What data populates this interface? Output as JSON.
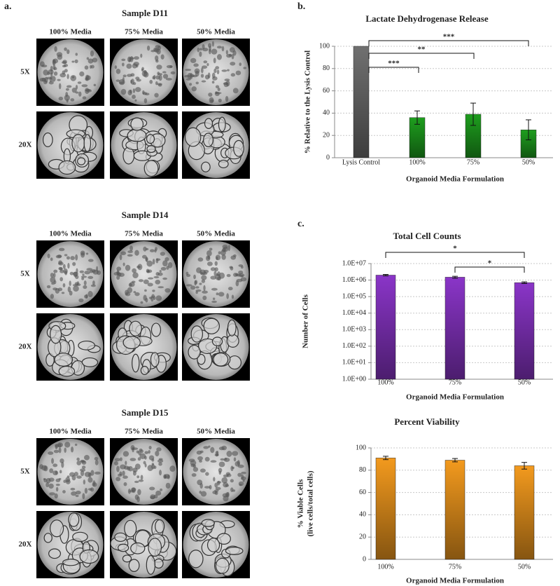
{
  "panel_a": {
    "label": "a.",
    "samples": [
      {
        "title": "Sample D11",
        "columns": [
          "100% Media",
          "75% Media",
          "50% Media"
        ],
        "rows": [
          "5X",
          "20X"
        ]
      },
      {
        "title": "Sample D14",
        "columns": [
          "100% Media",
          "75% Media",
          "50% Media"
        ],
        "rows": [
          "5X",
          "20X"
        ]
      },
      {
        "title": "Sample D15",
        "columns": [
          "100% Media",
          "75% Media",
          "50% Media"
        ],
        "rows": [
          "5X",
          "20X"
        ]
      }
    ]
  },
  "chart_data": [
    {
      "type": "bar",
      "panel": "b.",
      "title": "Lactate Dehydrogenase Release",
      "ylabel": [
        "% Relative to the Lysis Control"
      ],
      "xlabel": "Organoid Media Formulation",
      "categories": [
        "Lysis Control",
        "100%",
        "75%",
        "50%"
      ],
      "values": [
        100,
        36,
        39,
        25
      ],
      "errors": [
        0,
        6,
        10,
        9
      ],
      "colors": [
        "#707070",
        "#1e9e1e",
        "#1e9e1e",
        "#1e9e1e"
      ],
      "ylim": [
        0,
        100
      ],
      "yticks": [
        0,
        20,
        40,
        60,
        80,
        100
      ],
      "grid": true,
      "log": false,
      "annotations": [
        "***",
        "**",
        "***"
      ]
    },
    {
      "type": "bar",
      "panel": "c.",
      "title": "Total Cell Counts",
      "ylabel": [
        "Number of Cells"
      ],
      "xlabel": "Organoid Media Formulation",
      "categories": [
        "100%",
        "75%",
        "50%"
      ],
      "values": [
        2000000,
        1500000,
        700000
      ],
      "errors": [
        200000,
        200000,
        80000
      ],
      "colors": [
        "#8a35c8",
        "#8a35c8",
        "#8a35c8"
      ],
      "ylim": [
        1,
        10000000
      ],
      "log": true,
      "grid": true,
      "yticks": [
        {
          "value": 1,
          "label": "1.0E+00"
        },
        {
          "value": 10,
          "label": "1.0E+01"
        },
        {
          "value": 100,
          "label": "1.0E+02"
        },
        {
          "value": 1000,
          "label": "1.0E+03"
        },
        {
          "value": 10000,
          "label": "1.0E+04"
        },
        {
          "value": 100000,
          "label": "1.0E+05"
        },
        {
          "value": 1000000,
          "label": "1.0E+06"
        },
        {
          "value": 10000000,
          "label": "1.0E+07"
        }
      ],
      "annotations": [
        "*",
        "*"
      ]
    },
    {
      "type": "bar",
      "title": "Percent Viability",
      "ylabel": [
        "% Viable Cells",
        "(live cells/total cells)"
      ],
      "xlabel": "Organoid Media Formulation",
      "categories": [
        "100%",
        "75%",
        "50%"
      ],
      "values": [
        91,
        89,
        84
      ],
      "errors": [
        1.5,
        1.5,
        3
      ],
      "colors": [
        "#f39a1e",
        "#f39a1e",
        "#f39a1e"
      ],
      "ylim": [
        0,
        100
      ],
      "yticks": [
        0,
        20,
        40,
        60,
        80,
        100
      ],
      "grid": true,
      "log": false
    }
  ]
}
